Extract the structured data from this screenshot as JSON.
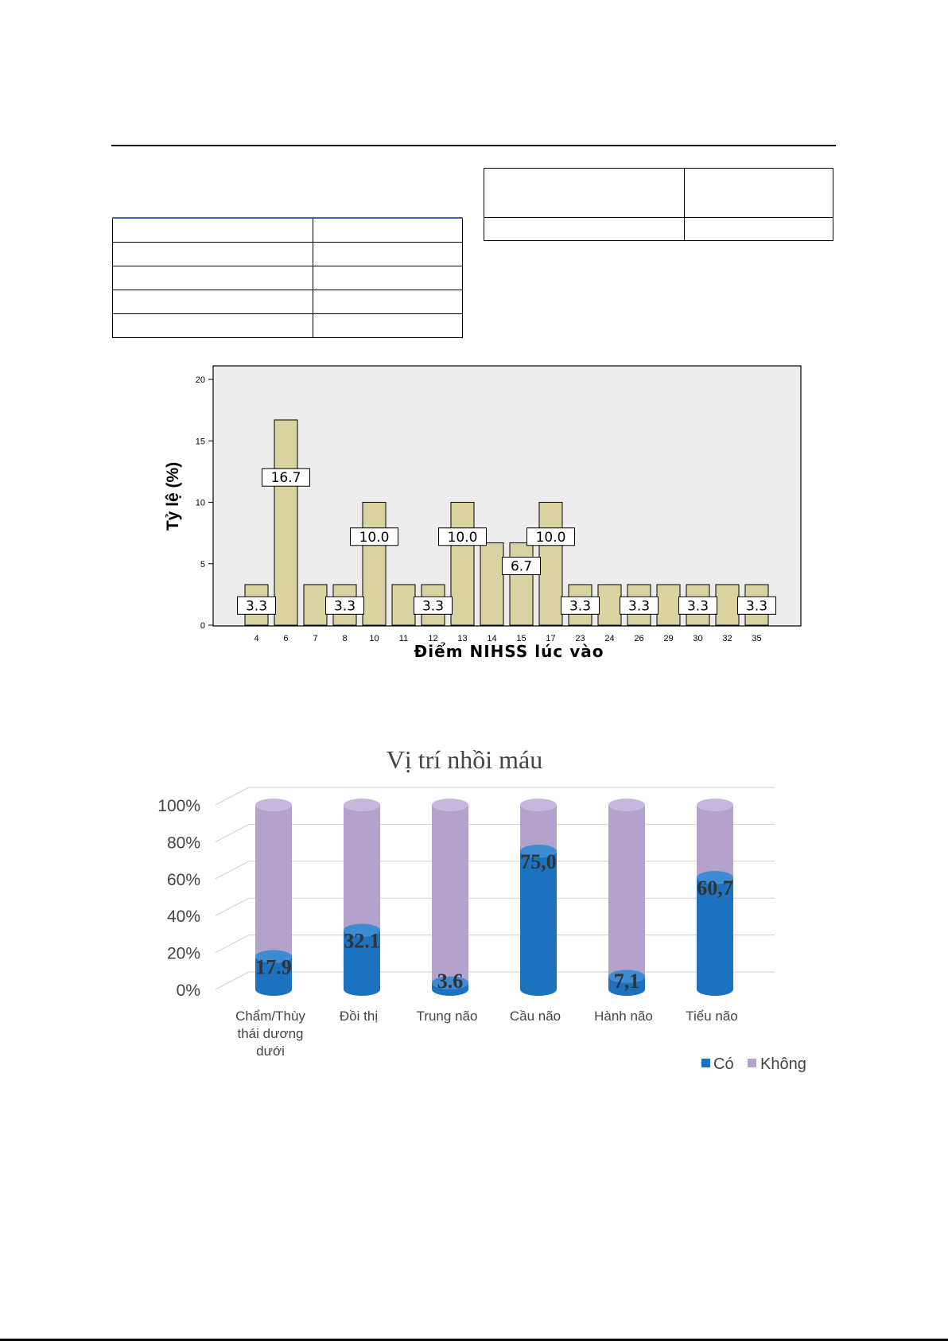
{
  "tables": {
    "left": {
      "rows": [
        [
          "",
          ""
        ],
        [
          "",
          ""
        ],
        [
          "",
          ""
        ],
        [
          "",
          ""
        ],
        [
          "",
          ""
        ]
      ]
    },
    "right": {
      "rows": [
        [
          "",
          ""
        ],
        [
          "",
          ""
        ]
      ]
    }
  },
  "chart_data": [
    {
      "type": "bar",
      "title": "",
      "xlabel": "Điểm NIHSS lúc vào",
      "ylabel": "Tỷ lệ (%)",
      "ylim": [
        0,
        20
      ],
      "yticks": [
        "0",
        "5",
        "10",
        "15",
        "20"
      ],
      "grid": false,
      "bar_color": "#d8d3a0",
      "categories": [
        "4",
        "6",
        "7",
        "8",
        "10",
        "11",
        "12",
        "13",
        "14",
        "15",
        "17",
        "23",
        "24",
        "26",
        "29",
        "30",
        "32",
        "35"
      ],
      "values": [
        3.3,
        16.7,
        3.3,
        3.3,
        10.0,
        3.3,
        3.3,
        10.0,
        6.7,
        6.7,
        10.0,
        3.3,
        3.3,
        3.3,
        3.3,
        3.3,
        3.3,
        3.3
      ],
      "data_labels": [
        {
          "category": "4",
          "text": "3.3"
        },
        {
          "category": "6",
          "text": "16.7"
        },
        {
          "category": "8",
          "text": "3.3"
        },
        {
          "category": "10",
          "text": "10.0"
        },
        {
          "category": "12",
          "text": "3.3"
        },
        {
          "category": "13",
          "text": "10.0"
        },
        {
          "category": "15",
          "text": "6.7"
        },
        {
          "category": "17",
          "text": "10.0"
        },
        {
          "category": "23",
          "text": "3.3"
        },
        {
          "category": "26",
          "text": "3.3"
        },
        {
          "category": "30",
          "text": "3.3"
        },
        {
          "category": "35",
          "text": "3.3"
        }
      ]
    },
    {
      "type": "bar",
      "stacked": "percent",
      "title": "Vị trí nhồi máu",
      "ylim": [
        0,
        100
      ],
      "yticks": [
        "0%",
        "20%",
        "40%",
        "60%",
        "80%",
        "100%"
      ],
      "grid": true,
      "legend": "bottom-right",
      "categories": [
        [
          "Chẩm/Thùy",
          "thái dương",
          "dưới"
        ],
        [
          "Đồi thị"
        ],
        [
          "Trung não"
        ],
        [
          "Cầu não"
        ],
        [
          "Hành não"
        ],
        [
          "Tiểu não"
        ]
      ],
      "series": [
        {
          "name": "Có",
          "color": "#1d72bf",
          "values": [
            17.9,
            32.1,
            3.6,
            75.0,
            7.1,
            60.7
          ]
        },
        {
          "name": "Không",
          "color": "#b3a2cc",
          "values": [
            82.1,
            67.9,
            96.4,
            25.0,
            92.9,
            39.3
          ]
        }
      ],
      "data_labels": [
        "17.9",
        "32.1",
        "3.6",
        "75,0",
        "7,1",
        "60,7"
      ]
    }
  ]
}
